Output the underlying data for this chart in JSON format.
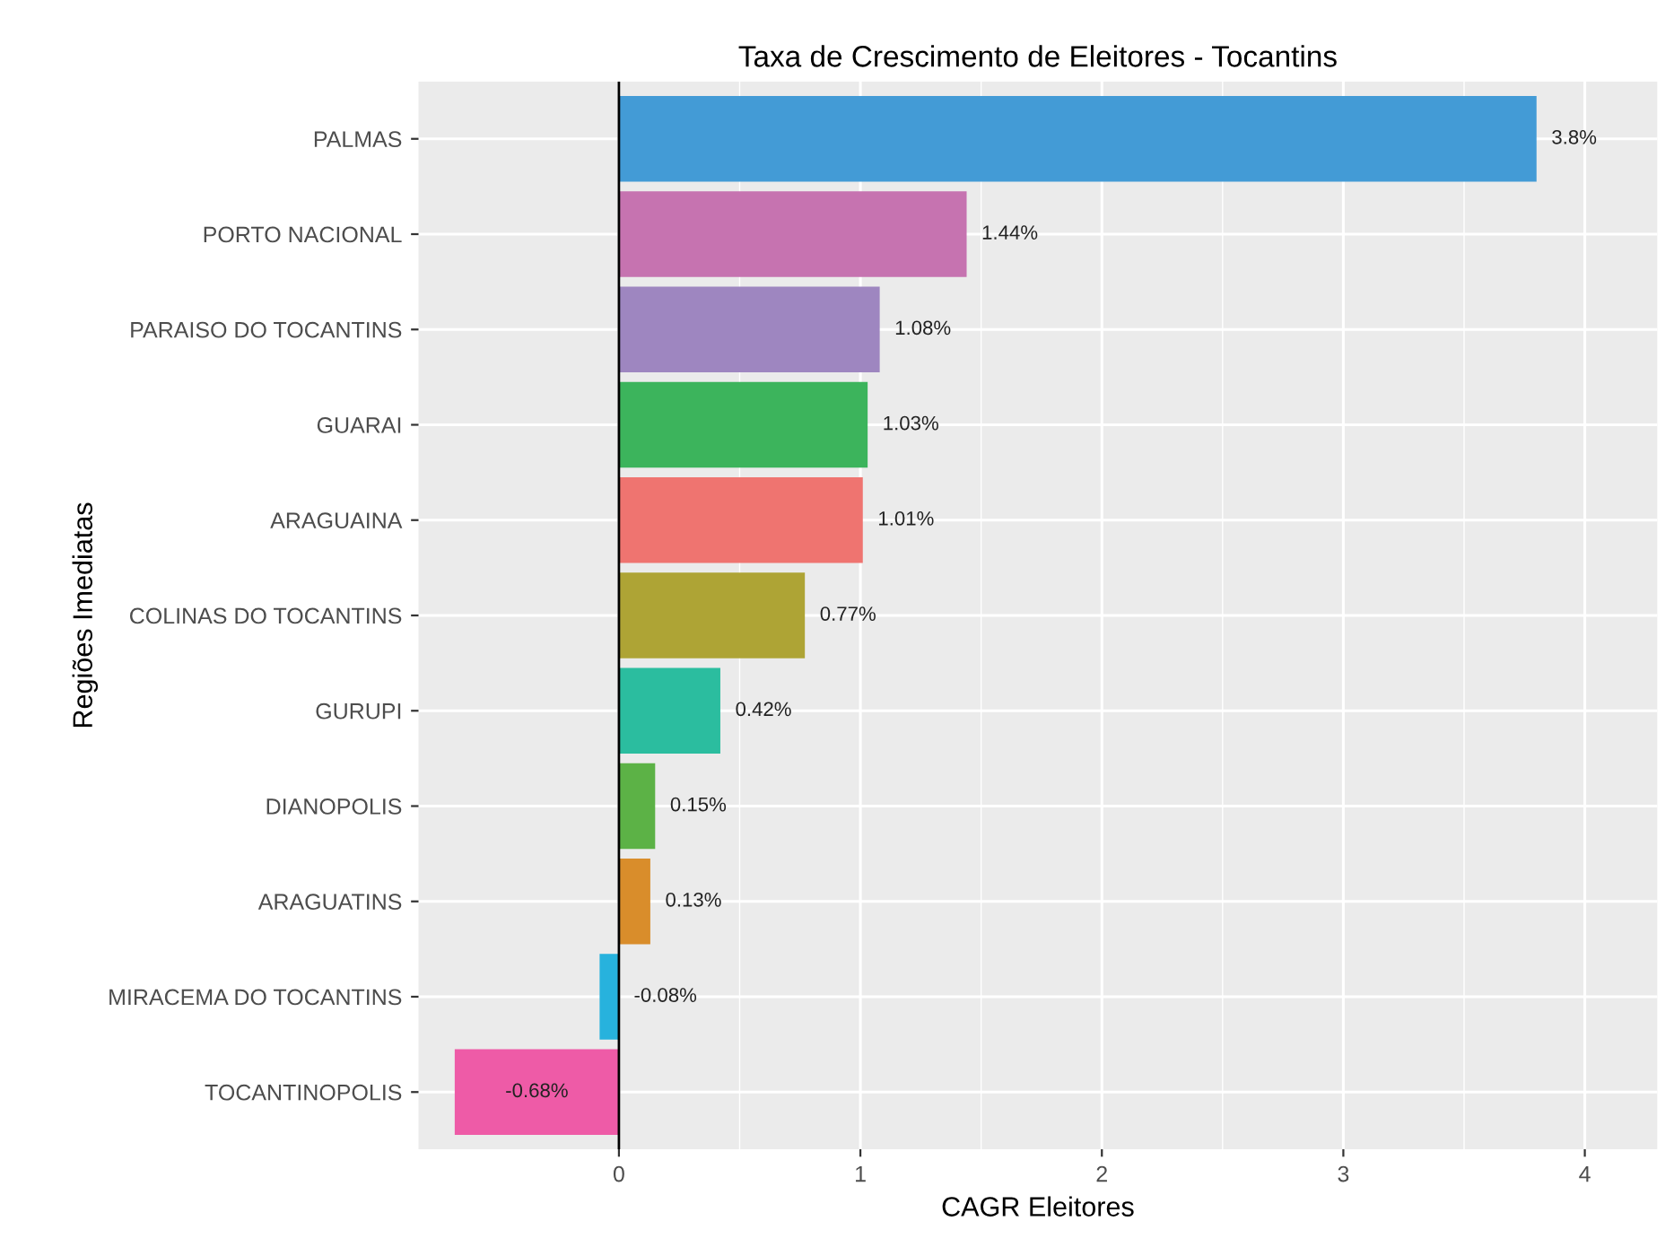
{
  "chart_data": {
    "type": "bar",
    "orientation": "horizontal",
    "title": "Taxa de Crescimento de Eleitores - Tocantins",
    "xlabel": "CAGR Eleitores",
    "ylabel": "Regiões Imediatas",
    "categories": [
      "PALMAS",
      "PORTO NACIONAL",
      "PARAISO DO TOCANTINS",
      "GUARAI",
      "ARAGUAINA",
      "COLINAS DO TOCANTINS",
      "GURUPI",
      "DIANOPOLIS",
      "ARAGUATINS",
      "MIRACEMA DO TOCANTINS",
      "TOCANTINOPOLIS"
    ],
    "values": [
      3.8,
      1.44,
      1.08,
      1.03,
      1.01,
      0.77,
      0.42,
      0.15,
      0.13,
      -0.08,
      -0.68
    ],
    "value_labels": [
      "3.8%",
      "1.44%",
      "1.08%",
      "1.03%",
      "1.01%",
      "0.77%",
      "0.42%",
      "0.15%",
      "0.13%",
      "-0.08%",
      "-0.68%"
    ],
    "colors": [
      "#439bd6",
      "#c673b0",
      "#9e86c0",
      "#3cb45c",
      "#ef7470",
      "#aea435",
      "#2bbd9f",
      "#5cb246",
      "#d98d2b",
      "#27b2dd",
      "#ee5ba7"
    ],
    "xlim": [
      -0.83,
      4.3
    ],
    "xticks": [
      0,
      1,
      2,
      3,
      4
    ],
    "grid": true,
    "ref_lines": [
      {
        "axis": "x",
        "value": 0,
        "color": "#000000"
      }
    ]
  }
}
